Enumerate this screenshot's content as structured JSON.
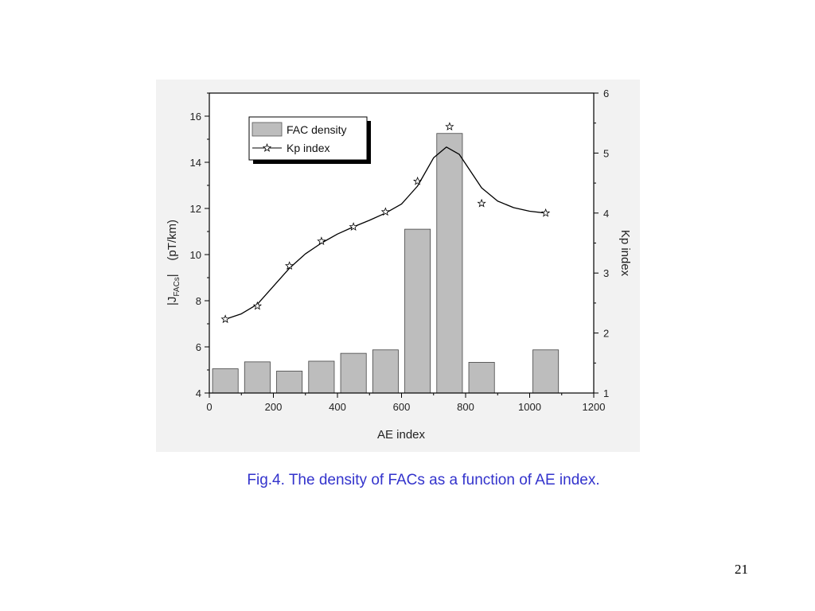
{
  "caption": "Fig.4. The density of FACs as a function of AE index.",
  "page_number": "21",
  "chart_data": {
    "type": "bar",
    "xlabel": "AE index",
    "ylabel_left": "|J_FACs|   (pT/km)",
    "ylabel_left_parts": {
      "pre": "|J",
      "sub": "FACs",
      "post": "|    (pT/km)"
    },
    "ylabel_right": "Kp index",
    "xlim": [
      0,
      1200
    ],
    "ylim_left": [
      4,
      17
    ],
    "ylim_right": [
      1,
      6
    ],
    "x_ticks": [
      "0",
      "200",
      "400",
      "600",
      "800",
      "1000",
      "1200"
    ],
    "y_left_ticks": [
      "4",
      "6",
      "8",
      "10",
      "12",
      "14",
      "16"
    ],
    "y_right_ticks": [
      "1",
      "2",
      "3",
      "4",
      "5",
      "6"
    ],
    "legend": {
      "placement": "top-left",
      "entries": [
        "FAC density",
        "Kp index"
      ]
    },
    "grid": false,
    "series": [
      {
        "name": "FAC density",
        "type": "bar",
        "axis": "left",
        "x": [
          50,
          150,
          250,
          350,
          450,
          550,
          650,
          750,
          850,
          1050
        ],
        "values": [
          5.05,
          5.35,
          4.95,
          5.38,
          5.72,
          5.87,
          11.1,
          15.25,
          5.33,
          5.87
        ],
        "bar_width": 80,
        "color": "#bdbdbd"
      },
      {
        "name": "Kp index",
        "type": "line",
        "axis": "right",
        "x": [
          50,
          150,
          250,
          350,
          450,
          550,
          650,
          750,
          850,
          1050
        ],
        "values": [
          2.23,
          2.45,
          3.12,
          3.53,
          3.77,
          4.02,
          4.53,
          5.44,
          4.16,
          4.0
        ],
        "fit_x": [
          50,
          100,
          150,
          200,
          250,
          300,
          350,
          400,
          450,
          500,
          550,
          600,
          650,
          700,
          740,
          780,
          820,
          850,
          900,
          950,
          1000,
          1050
        ],
        "fit_y": [
          2.23,
          2.32,
          2.48,
          2.78,
          3.08,
          3.32,
          3.5,
          3.65,
          3.77,
          3.88,
          4.0,
          4.15,
          4.45,
          4.92,
          5.1,
          4.98,
          4.66,
          4.42,
          4.2,
          4.09,
          4.03,
          4.0
        ],
        "marker": "star",
        "color": "#000000"
      }
    ]
  }
}
